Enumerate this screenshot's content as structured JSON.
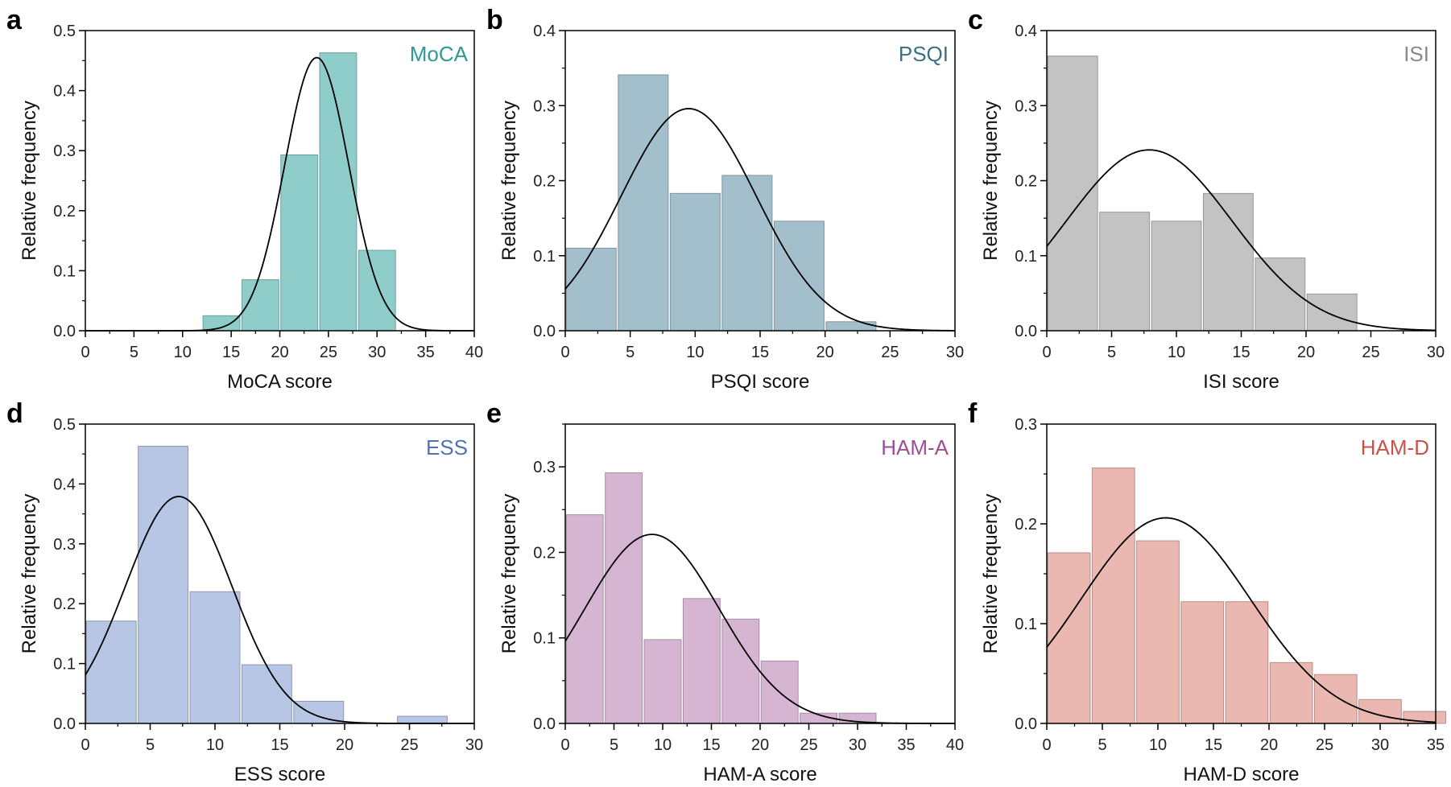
{
  "figure": {
    "ylabel": "Relative frequency"
  },
  "chart_data": [
    {
      "type": "bar",
      "panel": "a",
      "title": "MoCA",
      "color": "#8ecdc9",
      "title_color": "#2e9a93",
      "xlabel": "MoCA score",
      "ylabel": "Relative frequency",
      "xlim": [
        0,
        40
      ],
      "ylim": [
        0,
        0.5
      ],
      "xticks": [
        0,
        5,
        10,
        15,
        20,
        25,
        30,
        35,
        40
      ],
      "yticks": [
        "0.0",
        "0.1",
        "0.2",
        "0.3",
        "0.4",
        "0.5"
      ],
      "bin_width": 4,
      "bins": [
        [
          12,
          0.025
        ],
        [
          16,
          0.085
        ],
        [
          20,
          0.293
        ],
        [
          24,
          0.463
        ],
        [
          28,
          0.134
        ]
      ],
      "curve": {
        "mean": 23.8,
        "peak": 0.455,
        "sd": 3.3
      }
    },
    {
      "type": "bar",
      "panel": "b",
      "title": "PSQI",
      "color": "#a3bfcc",
      "title_color": "#3d6f86",
      "xlabel": "PSQI score",
      "ylabel": "Relative frequency",
      "xlim": [
        0,
        30
      ],
      "ylim": [
        0,
        0.4
      ],
      "xticks": [
        0,
        5,
        10,
        15,
        20,
        25,
        30
      ],
      "yticks": [
        "0.0",
        "0.1",
        "0.2",
        "0.3",
        "0.4"
      ],
      "bin_width": 4,
      "bins": [
        [
          0,
          0.11
        ],
        [
          4,
          0.341
        ],
        [
          8,
          0.183
        ],
        [
          12,
          0.207
        ],
        [
          16,
          0.146
        ],
        [
          20,
          0.012
        ]
      ],
      "curve": {
        "mean": 9.5,
        "peak": 0.296,
        "sd": 5.2
      }
    },
    {
      "type": "bar",
      "panel": "c",
      "title": "ISI",
      "color": "#c3c3c3",
      "title_color": "#8a8a8a",
      "xlabel": "ISI score",
      "ylabel": "Relative frequency",
      "xlim": [
        0,
        30
      ],
      "ylim": [
        0,
        0.4
      ],
      "xticks": [
        0,
        5,
        10,
        15,
        20,
        25,
        30
      ],
      "yticks": [
        "0.0",
        "0.1",
        "0.2",
        "0.3",
        "0.4"
      ],
      "bin_width": 4,
      "bins": [
        [
          0,
          0.366
        ],
        [
          4,
          0.158
        ],
        [
          8,
          0.146
        ],
        [
          12,
          0.183
        ],
        [
          16,
          0.097
        ],
        [
          20,
          0.049
        ]
      ],
      "curve": {
        "mean": 7.9,
        "peak": 0.241,
        "sd": 6.4
      }
    },
    {
      "type": "bar",
      "panel": "d",
      "title": "ESS",
      "color": "#b6c6e4",
      "title_color": "#4e74b4",
      "xlabel": "ESS score",
      "ylabel": "Relative frequency",
      "xlim": [
        0,
        30
      ],
      "ylim": [
        0,
        0.5
      ],
      "xticks": [
        0,
        5,
        10,
        15,
        20,
        25,
        30
      ],
      "yticks": [
        "0.0",
        "0.1",
        "0.2",
        "0.3",
        "0.4",
        "0.5"
      ],
      "bin_width": 4,
      "bins": [
        [
          0,
          0.171
        ],
        [
          4,
          0.463
        ],
        [
          8,
          0.22
        ],
        [
          12,
          0.098
        ],
        [
          16,
          0.037
        ],
        [
          24,
          0.012
        ]
      ],
      "curve": {
        "mean": 7.2,
        "peak": 0.379,
        "sd": 4.1
      }
    },
    {
      "type": "bar",
      "panel": "e",
      "title": "HAM-A",
      "color": "#d6b5d2",
      "title_color": "#9c4f96",
      "xlabel": "HAM-A score",
      "ylabel": "Relative frequency",
      "xlim": [
        0,
        40
      ],
      "ylim": [
        0,
        0.35
      ],
      "xticks": [
        0,
        5,
        10,
        15,
        20,
        25,
        30,
        35,
        40
      ],
      "yticks": [
        "0.0",
        "0.1",
        "0.2",
        "0.3"
      ],
      "ytick_values": [
        0,
        0.1,
        0.2,
        0.3
      ],
      "bin_width": 4,
      "bins": [
        [
          0,
          0.244
        ],
        [
          4,
          0.293
        ],
        [
          8,
          0.098
        ],
        [
          12,
          0.146
        ],
        [
          16,
          0.122
        ],
        [
          20,
          0.073
        ],
        [
          24,
          0.012
        ],
        [
          28,
          0.012
        ]
      ],
      "curve": {
        "mean": 8.9,
        "peak": 0.221,
        "sd": 6.9
      }
    },
    {
      "type": "bar",
      "panel": "f",
      "title": "HAM-D",
      "color": "#ebb7b1",
      "title_color": "#c8534a",
      "xlabel": "HAM-D score",
      "ylabel": "Relative frequency",
      "xlim": [
        0,
        35
      ],
      "ylim": [
        0,
        0.3
      ],
      "xticks": [
        0,
        5,
        10,
        15,
        20,
        25,
        30,
        35
      ],
      "yticks": [
        "0.0",
        "0.1",
        "0.2",
        "0.3"
      ],
      "bin_width": 4,
      "bins": [
        [
          0,
          0.171
        ],
        [
          4,
          0.256
        ],
        [
          8,
          0.183
        ],
        [
          12,
          0.122
        ],
        [
          16,
          0.122
        ],
        [
          20,
          0.061
        ],
        [
          24,
          0.049
        ],
        [
          28,
          0.024
        ],
        [
          32,
          0.012
        ]
      ],
      "curve": {
        "mean": 10.7,
        "peak": 0.206,
        "sd": 7.6
      }
    }
  ]
}
